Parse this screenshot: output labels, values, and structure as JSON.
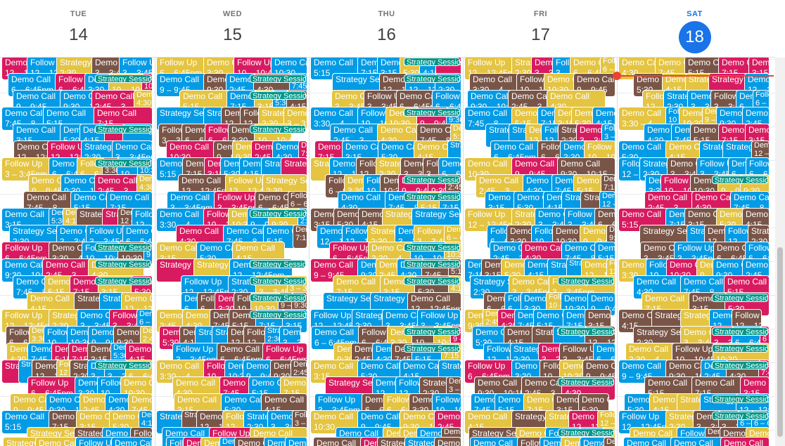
{
  "days": [
    {
      "dow": "TUE",
      "num": "14"
    },
    {
      "dow": "WED",
      "num": "15"
    },
    {
      "dow": "THU",
      "num": "16"
    },
    {
      "dow": "FRI",
      "num": "17"
    },
    {
      "dow": "SAT",
      "num": "18",
      "today": true
    }
  ],
  "colors": {
    "blue": "#039be5",
    "brown": "#795548",
    "pink": "#d81b60",
    "yellow": "#e4c441",
    "teal": "#009688",
    "today": "#1a73e8",
    "now": "#ea4335"
  },
  "events": [
    {
      "title": "Demo Call",
      "time": "12 – 12:45pm"
    },
    {
      "title": "Follow Up",
      "time": "12 – 12:45pm"
    },
    {
      "title": "Strategy Session",
      "time": "2:30"
    },
    {
      "title": "Demo Call",
      "time": "3 – 3:45pm"
    },
    {
      "title": "Follow Up",
      "time": "3 – 3:45pm"
    },
    {
      "title": "Demo Call",
      "time": "6 – 6:45pm"
    },
    {
      "title": "Follow Up",
      "time": "6 – 6:45pm"
    },
    {
      "title": "Demo Call",
      "time": "3:30 – 4"
    },
    {
      "title": "Follow Up",
      "time": "10 – 10:45"
    },
    {
      "title": "Demo Call",
      "time": "10:30"
    },
    {
      "title": "Demo Call",
      "time": "9 – 9:45"
    },
    {
      "title": "Demo Call",
      "time": "9:30 – 10:15"
    },
    {
      "title": "Demo Call",
      "time": "2:45 – 3"
    },
    {
      "title": "Demo Call",
      "time": "4:30"
    },
    {
      "title": "Demo Call",
      "time": "7:45 – 8"
    },
    {
      "title": "Demo Call",
      "time": "5:15"
    },
    {
      "title": "Demo Call",
      "time": "7:15"
    },
    {
      "title": "Demo Call",
      "time": "3:15"
    },
    {
      "title": "Demo Call",
      "time": "5:30"
    },
    {
      "title": "Demo Call",
      "time": "4:15"
    },
    {
      "title": "Strategy Session, 1"
    },
    {
      "title": "Strategy Session, 9"
    }
  ]
}
